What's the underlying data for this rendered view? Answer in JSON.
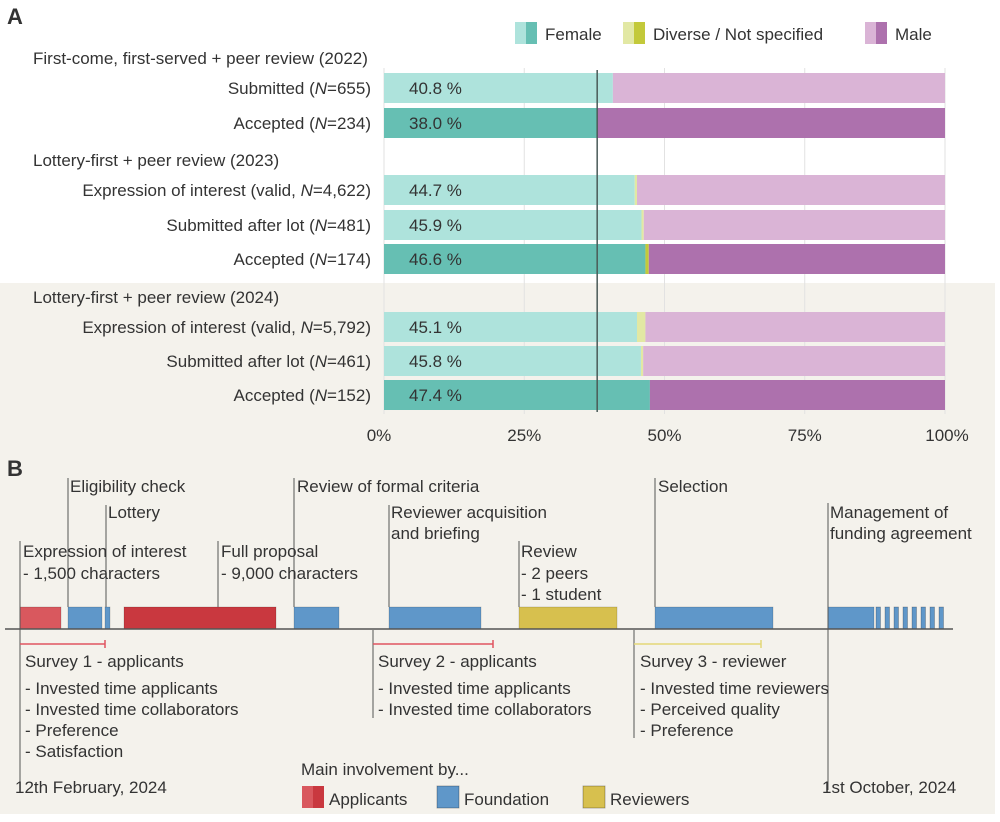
{
  "panel_a": {
    "label": "A",
    "legend": [
      {
        "name": "Female",
        "light": "#aee3dc",
        "dark": "#66bfb3"
      },
      {
        "name": "Diverse / Not specified",
        "light": "#e2e8a4",
        "dark": "#c3c93a"
      },
      {
        "name": "Male",
        "light": "#dab4d6",
        "dark": "#ad71ad"
      }
    ]
  },
  "chart_data": {
    "type": "bar",
    "orientation": "horizontal-stacked-percent",
    "xlim": [
      0,
      100
    ],
    "xticks": [
      "0%",
      "25%",
      "50%",
      "75%",
      "100%"
    ],
    "reference_line": 38.0,
    "groups": [
      {
        "title": "First-come, first-served + peer review (2022)",
        "rows": [
          {
            "label": "Submitted (N=655)",
            "label_prefix": "Submitted (",
            "n": "655",
            "female": 40.8,
            "diverse": 0.0,
            "male": 59.2,
            "female_label": "40.8 %",
            "accepted": false
          },
          {
            "label": "Accepted (N=234)",
            "label_prefix": "Accepted (",
            "n": "234",
            "female": 38.0,
            "diverse": 0.0,
            "male": 62.0,
            "female_label": "38.0 %",
            "accepted": true
          }
        ]
      },
      {
        "title": "Lottery-first + peer review (2023)",
        "rows": [
          {
            "label": "Expression of interest (valid, N=4,622)",
            "label_prefix": "Expression of interest (valid, ",
            "n": "4,622",
            "female": 44.7,
            "diverse": 0.4,
            "male": 54.9,
            "female_label": "44.7 %",
            "accepted": false
          },
          {
            "label": "Submitted after lot (N=481)",
            "label_prefix": "Submitted after lot (",
            "n": "481",
            "female": 45.9,
            "diverse": 0.4,
            "male": 53.7,
            "female_label": "45.9 %",
            "accepted": false
          },
          {
            "label": "Accepted (N=174)",
            "label_prefix": "Accepted (",
            "n": "174",
            "female": 46.6,
            "diverse": 0.6,
            "male": 52.8,
            "female_label": "46.6 %",
            "accepted": true
          }
        ]
      },
      {
        "title": "Lottery-first + peer review (2024)",
        "rows": [
          {
            "label": "Expression of interest (valid, N=5,792)",
            "label_prefix": "Expression of interest (valid, ",
            "n": "5,792",
            "female": 45.1,
            "diverse": 1.5,
            "male": 53.4,
            "female_label": "45.1 %",
            "accepted": false
          },
          {
            "label": "Submitted after lot (N=461)",
            "label_prefix": "Submitted after lot (",
            "n": "461",
            "female": 45.8,
            "diverse": 0.4,
            "male": 53.8,
            "female_label": "45.8 %",
            "accepted": false
          },
          {
            "label": "Accepted (N=152)",
            "label_prefix": "Accepted (",
            "n": "152",
            "female": 47.4,
            "diverse": 0.0,
            "male": 52.6,
            "female_label": "47.4 %",
            "accepted": true
          }
        ]
      }
    ]
  },
  "panel_b": {
    "label": "B",
    "colors": {
      "applicants": "#c9383f",
      "applicants_light": "#d9585e",
      "foundation": "#5f97c9",
      "reviewers": "#d7c04e",
      "survey_applicants": "#e05560",
      "survey_reviewer": "#e3d777"
    },
    "phases": [
      {
        "title": "Expression of interest",
        "detail": "- 1,500 characters",
        "role": "applicants"
      },
      {
        "title": "Eligibility check",
        "role": "foundation"
      },
      {
        "title": "Lottery",
        "role": "foundation"
      },
      {
        "title": "Full proposal",
        "detail": "- 9,000 characters",
        "role": "applicants"
      },
      {
        "title": "Review of formal criteria",
        "role": "foundation"
      },
      {
        "title": "Reviewer acquisition",
        "title2": "and briefing",
        "role": "foundation"
      },
      {
        "title": "Review",
        "detail": "- 2 peers",
        "detail2": "- 1 student",
        "role": "reviewers"
      },
      {
        "title": "Selection",
        "role": "foundation"
      },
      {
        "title": "Management of",
        "title2": "funding agreement",
        "role": "foundation"
      }
    ],
    "surveys": [
      {
        "title": "Survey 1 - applicants",
        "items": [
          "- Invested time applicants",
          "- Invested time collaborators",
          "- Preference",
          "- Satisfaction"
        ]
      },
      {
        "title": "Survey 2 - applicants",
        "items": [
          "- Invested time applicants",
          "- Invested time collaborators"
        ]
      },
      {
        "title": "Survey 3 - reviewer",
        "items": [
          "- Invested time reviewers",
          "- Perceived quality",
          "- Preference"
        ]
      }
    ],
    "start_date": "12th February, 2024",
    "end_date": "1st October, 2024",
    "legend_title": "Main involvement by...",
    "legend": [
      {
        "name": "Applicants",
        "role": "applicants"
      },
      {
        "name": "Foundation",
        "role": "foundation"
      },
      {
        "name": "Reviewers",
        "role": "reviewers"
      }
    ]
  }
}
